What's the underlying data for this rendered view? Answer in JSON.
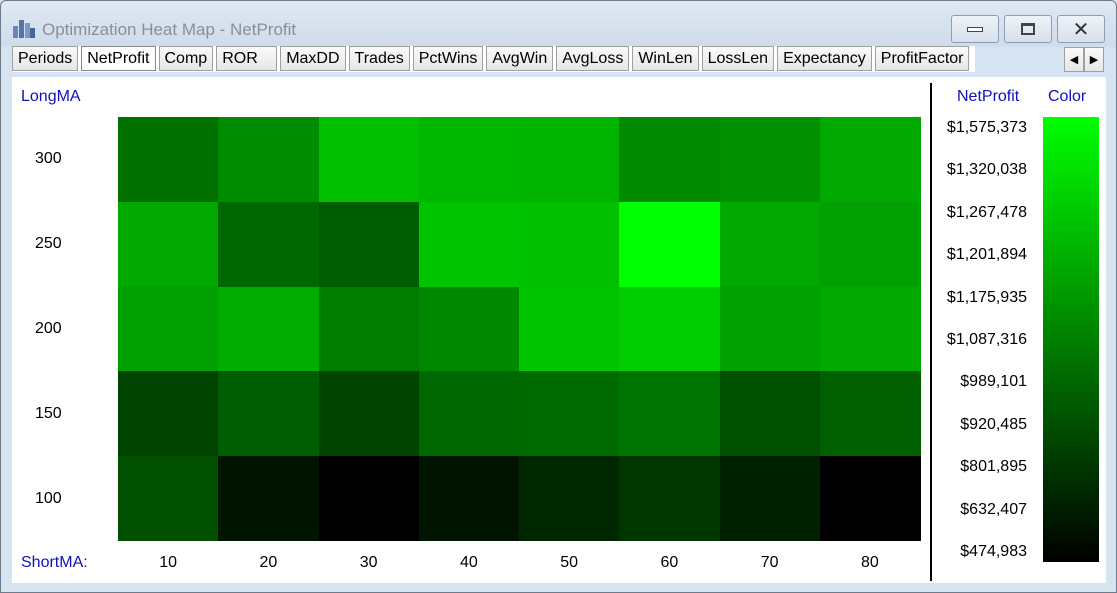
{
  "window": {
    "title": "Optimization Heat Map - NetProfit",
    "controls": [
      "minimize",
      "maximize",
      "close"
    ]
  },
  "tabs": [
    {
      "label": "Periods"
    },
    {
      "label": "NetProfit",
      "active": true
    },
    {
      "label": "Comp"
    },
    {
      "label": "ROR"
    },
    {
      "label": "MaxDD"
    },
    {
      "label": "Trades"
    },
    {
      "label": "PctWins"
    },
    {
      "label": "AvgWin"
    },
    {
      "label": "AvgLoss"
    },
    {
      "label": "WinLen"
    },
    {
      "label": "LossLen"
    },
    {
      "label": "Expectancy"
    },
    {
      "label": "ProfitFactor"
    }
  ],
  "heatmap": {
    "y_axis_label": "LongMA",
    "x_axis_label": "ShortMA:",
    "rows": [
      "300",
      "250",
      "200",
      "150",
      "100"
    ],
    "columns": [
      "10",
      "20",
      "30",
      "40",
      "50",
      "60",
      "70",
      "80"
    ],
    "cell_colors": [
      [
        "#007000",
        "#008c00",
        "#00c000",
        "#00b800",
        "#00b400",
        "#008a00",
        "#009000",
        "#00a800"
      ],
      [
        "#00a800",
        "#006800",
        "#005c00",
        "#00c400",
        "#00c000",
        "#00ff00",
        "#00a800",
        "#00a000"
      ],
      [
        "#00a000",
        "#00ac00",
        "#007c00",
        "#008800",
        "#00c400",
        "#00cc00",
        "#00a000",
        "#00a800"
      ],
      [
        "#004400",
        "#005c00",
        "#004400",
        "#006800",
        "#006c00",
        "#007400",
        "#005000",
        "#006000"
      ],
      [
        "#005000",
        "#001400",
        "#000000",
        "#001400",
        "#002800",
        "#003800",
        "#002000",
        "#000000"
      ]
    ]
  },
  "legend": {
    "value_header": "NetProfit",
    "color_header": "Color",
    "values": [
      "$1,575,373",
      "$1,320,038",
      "$1,267,478",
      "$1,201,894",
      "$1,175,935",
      "$1,087,316",
      "$989,101",
      "$920,485",
      "$801,895",
      "$632,407",
      "$474,983"
    ],
    "color_high": "#00ff00",
    "color_low": "#000000"
  }
}
